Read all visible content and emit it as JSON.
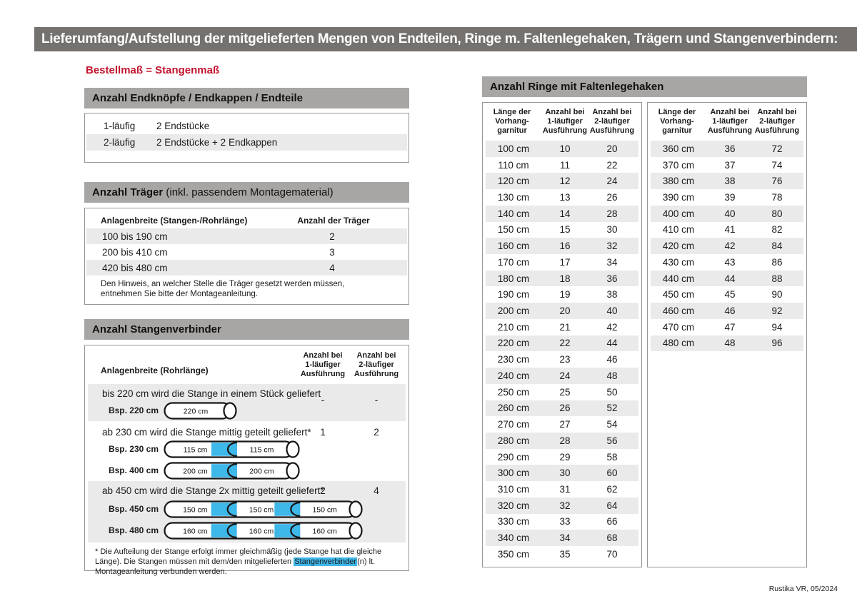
{
  "page": {
    "header_title": "Lieferumfang/Aufstellung der mitgelieferten Mengen von Endteilen, Ringe m. Faltenlegehaken, Trägern und Stangenverbindern:",
    "subtitle_red": "Bestellmaß = Stangenmaß",
    "footer": "Rustika VR, 05/2024"
  },
  "colors": {
    "header_bg": "#74716f",
    "section_bg": "#a8a6a4",
    "row_shade": "#ebeaea",
    "red": "#c3142e",
    "blue": "#3eb7e9",
    "border": "#969696"
  },
  "endteile": {
    "title": "Anzahl Endknöpfe / Endkappen / Endteile",
    "rows": [
      {
        "label": "1-läufig",
        "value": "2 Endstücke"
      },
      {
        "label": "2-läufig",
        "value": "2 Endstücke + 2 Endkappen"
      }
    ]
  },
  "traeger": {
    "title_bold": "Anzahl Träger",
    "title_rest": " (inkl. passendem Montagematerial)",
    "col1": "Anlagenbreite (Stangen-/Rohrlänge)",
    "col2": "Anzahl der Träger",
    "rows": [
      {
        "range": "100 bis 190 cm",
        "count": "2"
      },
      {
        "range": "200 bis 410 cm",
        "count": "3"
      },
      {
        "range": "420 bis 480 cm",
        "count": "4"
      }
    ],
    "note": "Den Hinweis, an welcher Stelle die Träger gesetzt werden müssen, entnehmen Sie bitte der Montageanleitung."
  },
  "verbinder": {
    "title": "Anzahl Stangenverbinder",
    "col1": "Anlagenbreite (Rohrlänge)",
    "col2": "Anzahl bei\n1-läufiger\nAusführung",
    "col3": "Anzahl bei\n2-läufiger\nAusführung",
    "blocks": [
      {
        "text": "bis 220 cm wird die Stange in einem Stück geliefert",
        "v1": "-",
        "v2": "-",
        "rods": [
          {
            "label": "Bsp. 220 cm",
            "segments": [
              "220 cm"
            ]
          }
        ]
      },
      {
        "text": "ab 230 cm wird die Stange mittig geteilt geliefert*",
        "v1": "1",
        "v2": "2",
        "rods": [
          {
            "label": "Bsp. 230 cm",
            "segments": [
              "115 cm",
              "115 cm"
            ]
          },
          {
            "label": "Bsp. 400 cm",
            "segments": [
              "200 cm",
              "200 cm"
            ]
          }
        ]
      },
      {
        "text": "ab 450 cm wird die Stange 2x mittig geteilt geliefert*",
        "v1": "2",
        "v2": "4",
        "rods": [
          {
            "label": "Bsp. 450 cm",
            "segments": [
              "150 cm",
              "150 cm",
              "150 cm"
            ]
          },
          {
            "label": "Bsp. 480 cm",
            "segments": [
              "160 cm",
              "160 cm",
              "160 cm"
            ]
          }
        ]
      }
    ],
    "footnote_pre": "* Die Aufteilung der Stange erfolgt immer gleichmäßig (jede Stange hat die gleiche Länge). Die Stangen müssen mit dem/den mitgelieferten ",
    "footnote_highlight": "Stangenverbinder",
    "footnote_post": "(n) lt. Montageanleitung verbunden werden."
  },
  "ringe": {
    "title": "Anzahl Ringe mit Faltenlegehaken",
    "col1": "Länge der\nVorhang-\ngarnitur",
    "col2": "Anzahl bei\n1-läufiger\nAusführung",
    "col3": "Anzahl bei\n2-läufiger\nAusführung",
    "left_rows": [
      [
        "100 cm",
        "10",
        "20"
      ],
      [
        "110 cm",
        "11",
        "22"
      ],
      [
        "120 cm",
        "12",
        "24"
      ],
      [
        "130 cm",
        "13",
        "26"
      ],
      [
        "140 cm",
        "14",
        "28"
      ],
      [
        "150 cm",
        "15",
        "30"
      ],
      [
        "160 cm",
        "16",
        "32"
      ],
      [
        "170 cm",
        "17",
        "34"
      ],
      [
        "180 cm",
        "18",
        "36"
      ],
      [
        "190 cm",
        "19",
        "38"
      ],
      [
        "200 cm",
        "20",
        "40"
      ],
      [
        "210 cm",
        "21",
        "42"
      ],
      [
        "220 cm",
        "22",
        "44"
      ],
      [
        "230 cm",
        "23",
        "46"
      ],
      [
        "240 cm",
        "24",
        "48"
      ],
      [
        "250 cm",
        "25",
        "50"
      ],
      [
        "260 cm",
        "26",
        "52"
      ],
      [
        "270 cm",
        "27",
        "54"
      ],
      [
        "280 cm",
        "28",
        "56"
      ],
      [
        "290 cm",
        "29",
        "58"
      ],
      [
        "300 cm",
        "30",
        "60"
      ],
      [
        "310 cm",
        "31",
        "62"
      ],
      [
        "320 cm",
        "32",
        "64"
      ],
      [
        "330 cm",
        "33",
        "66"
      ],
      [
        "340 cm",
        "34",
        "68"
      ],
      [
        "350 cm",
        "35",
        "70"
      ]
    ],
    "right_rows": [
      [
        "360 cm",
        "36",
        "72"
      ],
      [
        "370 cm",
        "37",
        "74"
      ],
      [
        "380 cm",
        "38",
        "76"
      ],
      [
        "390 cm",
        "39",
        "78"
      ],
      [
        "400 cm",
        "40",
        "80"
      ],
      [
        "410 cm",
        "41",
        "82"
      ],
      [
        "420 cm",
        "42",
        "84"
      ],
      [
        "430 cm",
        "43",
        "86"
      ],
      [
        "440 cm",
        "44",
        "88"
      ],
      [
        "450 cm",
        "45",
        "90"
      ],
      [
        "460 cm",
        "46",
        "92"
      ],
      [
        "470 cm",
        "47",
        "94"
      ],
      [
        "480 cm",
        "48",
        "96"
      ]
    ]
  }
}
